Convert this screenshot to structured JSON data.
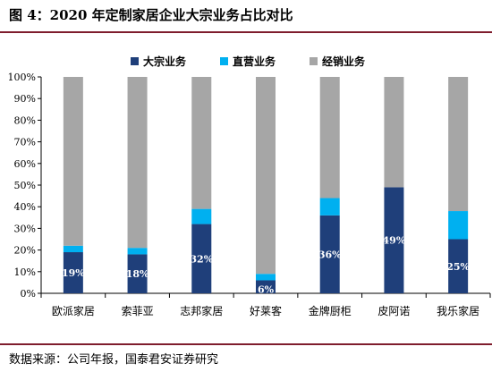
{
  "figure": {
    "title": "图 4：2020 年定制家居企业大宗业务占比对比",
    "source": "数据来源：公司年报，国泰君安证券研究"
  },
  "chart_data": {
    "type": "bar",
    "stacked": true,
    "categories": [
      "欧派家居",
      "索菲亚",
      "志邦家居",
      "好莱客",
      "金牌厨柜",
      "皮阿诺",
      "我乐家居"
    ],
    "series": [
      {
        "name": "大宗业务",
        "color": "#1f3f7a",
        "values": [
          19,
          18,
          32,
          6,
          36,
          49,
          25
        ]
      },
      {
        "name": "直营业务",
        "color": "#00b0f0",
        "values": [
          3,
          3,
          7,
          3,
          8,
          0,
          13
        ]
      },
      {
        "name": "经销业务",
        "color": "#a6a6a6",
        "values": [
          78,
          79,
          61,
          91,
          56,
          51,
          62
        ]
      }
    ],
    "data_labels": [
      "19%",
      "18%",
      "32%",
      "6%",
      "36%",
      "49%",
      "25%"
    ],
    "yticks": [
      "0%",
      "10%",
      "20%",
      "30%",
      "40%",
      "50%",
      "60%",
      "70%",
      "80%",
      "90%",
      "100%"
    ],
    "ylim": [
      0,
      100
    ],
    "legend_position": "top-center",
    "grid": false
  }
}
